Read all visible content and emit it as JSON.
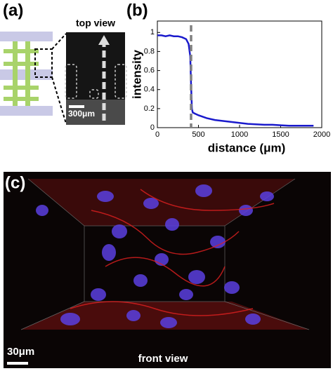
{
  "chart_data": {
    "type": "line",
    "y_label": "intensity",
    "x_label": "distance (μm)",
    "x": [
      0,
      50,
      100,
      150,
      200,
      250,
      300,
      350,
      380,
      400,
      410,
      420,
      430,
      450,
      500,
      600,
      700,
      800,
      900,
      1000,
      1100,
      1200,
      1300,
      1400,
      1500,
      1600,
      1700,
      1800,
      1900
    ],
    "series": [
      {
        "color": "#1a1acc",
        "values": [
          0.97,
          0.97,
          0.96,
          0.97,
          0.96,
          0.96,
          0.95,
          0.93,
          0.88,
          0.75,
          0.45,
          0.2,
          0.16,
          0.15,
          0.13,
          0.1,
          0.08,
          0.07,
          0.06,
          0.05,
          0.04,
          0.035,
          0.03,
          0.03,
          0.025,
          0.02,
          0.02,
          0.02,
          0.02
        ]
      }
    ],
    "vline": {
      "x": 410,
      "color": "#808080"
    },
    "xlim": [
      0,
      2000
    ],
    "xticks": [
      0,
      500,
      1000,
      1500,
      2000
    ],
    "ylim": [
      0,
      1.12
    ],
    "yticks": [
      0,
      0.2,
      0.4,
      0.6,
      0.8,
      1
    ]
  },
  "panels": {
    "a": {
      "label": "(a)",
      "view": "top view",
      "scale": "300μm"
    },
    "b": {
      "label": "(b)"
    },
    "c": {
      "label": "(c)",
      "scale": "30μm",
      "view": "front view"
    }
  }
}
